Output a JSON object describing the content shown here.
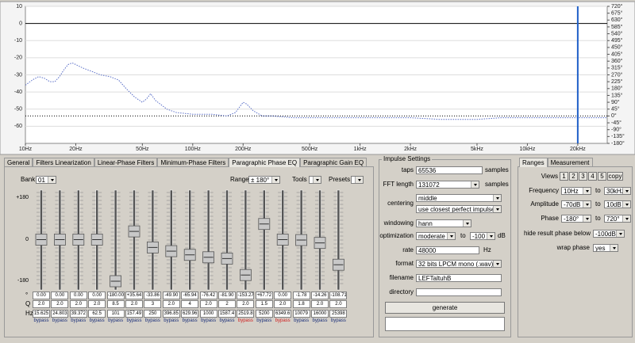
{
  "plot": {
    "amplitude_range": [
      -70,
      10
    ],
    "amplitude_ticks": [
      10,
      0,
      -10,
      -20,
      -30,
      -40,
      -50,
      -60
    ],
    "phase_range": [
      -180,
      720
    ],
    "phase_ticks": [
      {
        "value": 720,
        "label": "720°"
      },
      {
        "value": 675,
        "label": "675°"
      },
      {
        "value": 630,
        "label": "630°"
      },
      {
        "value": 585,
        "label": "585°"
      },
      {
        "value": 540,
        "label": "540°"
      },
      {
        "value": 495,
        "label": "495°"
      },
      {
        "value": 450,
        "label": "450°"
      },
      {
        "value": 405,
        "label": "405°"
      },
      {
        "value": 360,
        "label": "360°"
      },
      {
        "value": 315,
        "label": "315°"
      },
      {
        "value": 270,
        "label": "270°"
      },
      {
        "value": 225,
        "label": "225°"
      },
      {
        "value": 180,
        "label": "180°"
      },
      {
        "value": 135,
        "label": "135°"
      },
      {
        "value": 90,
        "label": "90°"
      },
      {
        "value": 45,
        "label": "45°"
      },
      {
        "value": 0,
        "label": "0°"
      },
      {
        "value": -45,
        "label": "-45°"
      },
      {
        "value": -90,
        "label": "-90°"
      },
      {
        "value": -135,
        "label": "-135°"
      },
      {
        "value": -180,
        "label": "-180°"
      }
    ],
    "frequency_range": [
      10,
      30000
    ],
    "frequency_ticks": [
      {
        "value": 10,
        "label": "10Hz"
      },
      {
        "value": 20,
        "label": "20Hz"
      },
      {
        "value": 50,
        "label": "50Hz"
      },
      {
        "value": 100,
        "label": "100Hz"
      },
      {
        "value": 200,
        "label": "200Hz"
      },
      {
        "value": 500,
        "label": "500Hz"
      },
      {
        "value": 1000,
        "label": "1kHz"
      },
      {
        "value": 2000,
        "label": "2kHz"
      },
      {
        "value": 5000,
        "label": "5kHz"
      },
      {
        "value": 10000,
        "label": "10kHz"
      },
      {
        "value": 20000,
        "label": "20kHz"
      }
    ],
    "marker_frequency": 20000,
    "response_color": "#5a6fc8",
    "marker_color": "#1f5fc8",
    "response": {
      "x": [
        10,
        11,
        12,
        13,
        14,
        15,
        16,
        17,
        18,
        19,
        20,
        22,
        25,
        28,
        32,
        36,
        40,
        45,
        50,
        53,
        56,
        60,
        70,
        80,
        100,
        130,
        160,
        180,
        200,
        210,
        230,
        260,
        300,
        400,
        500,
        700,
        1000,
        2000,
        3000,
        5000,
        7000,
        10000,
        15000,
        20000,
        25000,
        30000
      ],
      "values": [
        -36,
        -33,
        -31,
        -32,
        -34,
        -34,
        -31,
        -27,
        -24,
        -23,
        -24,
        -26,
        -28,
        -30,
        -31,
        -33,
        -38,
        -43,
        -46,
        -44,
        -41,
        -45,
        -50,
        -52,
        -53,
        -53,
        -54,
        -52,
        -46,
        -47,
        -51,
        -54,
        -54,
        -55,
        -55,
        -55,
        -55,
        -55,
        -56,
        -56,
        -55,
        -55,
        -55,
        -55,
        -55,
        -55
      ]
    }
  },
  "tabs": [
    "General",
    "Filters Linearization",
    "Linear-Phase Filters",
    "Minimum-Phase Filters",
    "Paragraphic Phase EQ",
    "Paragraphic Gain EQ"
  ],
  "eq": {
    "bank_label": "Bank",
    "bank": "01",
    "range_label": "Range",
    "range": "± 180°",
    "tools": "Tools",
    "presets": "Presets",
    "scale": [
      {
        "value": 180,
        "label": "+180"
      },
      {
        "value": 0,
        "label": "0"
      },
      {
        "value": -180,
        "label": "-180"
      }
    ],
    "row_labels": [
      "°",
      "Q",
      "Hz"
    ],
    "phase": [
      {
        "value": 0,
        "label": "0.00"
      },
      {
        "value": 0,
        "label": "0.00"
      },
      {
        "value": 0,
        "label": "0.00"
      },
      {
        "value": 0,
        "label": "0.00"
      },
      {
        "value": -180,
        "label": "-180.00"
      },
      {
        "value": 35.64,
        "label": "+35.64"
      },
      {
        "value": -33.86,
        "label": "-33.86"
      },
      {
        "value": -49.9,
        "label": "-49.90"
      },
      {
        "value": -65.94,
        "label": "-65.94"
      },
      {
        "value": -76.42,
        "label": "-76.42"
      },
      {
        "value": -81.9,
        "label": "-81.90"
      },
      {
        "value": -153.27,
        "label": "-153.27"
      },
      {
        "value": 67.72,
        "label": "+67.72"
      },
      {
        "value": 0,
        "label": "0.00"
      },
      {
        "value": -1.78,
        "label": "-1.78"
      },
      {
        "value": -14.26,
        "label": "-14.26"
      },
      {
        "value": -108.71,
        "label": "-108.71"
      }
    ],
    "q": [
      "2.0",
      "2.0",
      "2.0",
      "2.0",
      "8.5",
      "2.0",
      "3",
      "2.0",
      "4",
      "2.0",
      "2",
      "2.0",
      "1.5",
      "2.0",
      "1.8",
      "2.0",
      "2.0"
    ],
    "hz": [
      "15.625",
      "24.803",
      "39.372",
      "62.5",
      "101",
      "157.49",
      "250",
      "396.85",
      "629.96",
      "1000",
      "1587.4",
      "2519.8",
      "5200",
      "6349.6",
      "10079",
      "16000",
      "25398"
    ],
    "bypass": [
      "bypass",
      "bypass",
      "bypass",
      "bypass",
      "bypass",
      "bypass",
      "bypass",
      "bypass",
      "bypass",
      "bypass",
      "bypass",
      "bypass",
      "bypass",
      "bypass",
      "bypass",
      "bypass",
      "bypass"
    ],
    "bypass_colors": [
      "#1a2f7a",
      "#1a2f7a",
      "#1a2f7a",
      "#1a2f7a",
      "#1a2f7a",
      "#1a2f7a",
      "#1a2f7a",
      "#1a2f7a",
      "#1a2f7a",
      "#1a2f7a",
      "#1a2f7a",
      "#d02020",
      "#1a2f7a",
      "#d02020",
      "#1a2f7a",
      "#1a2f7a",
      "#1a2f7a"
    ]
  },
  "impulse": {
    "title": "Impulse Settings",
    "taps_label": "taps",
    "taps": "65536",
    "taps_unit": "samples",
    "fft_label": "FFT length",
    "fft": "131072",
    "fft_unit": "samples",
    "centering_label": "centering",
    "centering": "middle",
    "centering_mode": "use closest perfect impulse",
    "windowing_label": "windowing",
    "windowing": "hann",
    "optimization_label": "optimization",
    "optimization": "moderate",
    "optimization_to": "to",
    "optimization_db": "-100",
    "optimization_unit": "dB",
    "rate_label": "rate",
    "rate": "48000",
    "rate_unit": "Hz",
    "format_label": "format",
    "format": "32 bits LPCM mono (.wav)",
    "filename_label": "filename",
    "filename": "LEFTaltuhB",
    "directory_label": "directory",
    "generate": "generate"
  },
  "ranges": {
    "tabs": [
      "Ranges",
      "Measurement"
    ],
    "views_label": "Views",
    "views": [
      "1",
      "2",
      "3",
      "4",
      "5",
      "copy"
    ],
    "frequency_label": "Frequency",
    "frequency_from": "10Hz",
    "frequency_to_label": "to",
    "frequency_to": "30kHz",
    "amplitude_label": "Amplitude",
    "amplitude_from": "-70dB",
    "amplitude_to_label": "to",
    "amplitude_to": "10dB",
    "phase_label": "Phase",
    "phase_from": "-180°",
    "phase_to_label": "to",
    "phase_to": "720°",
    "hide_label": "hide result phase below",
    "hide": "-100dB",
    "wrap_label": "wrap phase",
    "wrap": "yes"
  }
}
